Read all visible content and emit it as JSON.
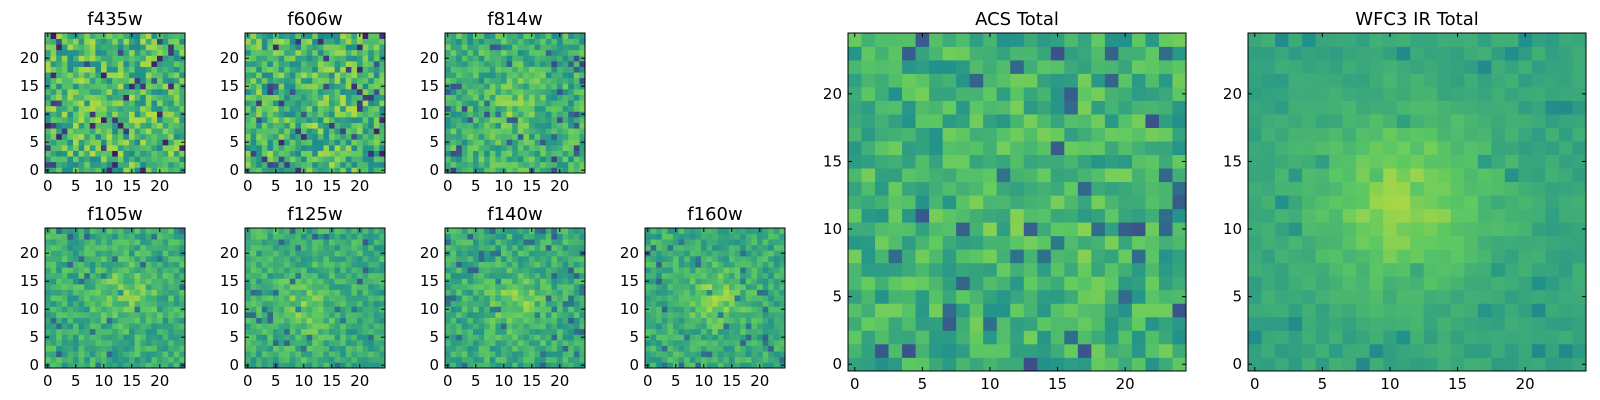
{
  "figure": {
    "colormap": [
      "#440154",
      "#3b528b",
      "#21918c",
      "#5ec962",
      "#fde725"
    ],
    "background": "#ffffff"
  },
  "chart_data": [
    {
      "id": "f435w",
      "type": "heatmap",
      "title": "f435w",
      "size": 25,
      "seed": 11,
      "peak": {
        "x": 13,
        "y": 12,
        "strength": 0.05,
        "sigma": 4
      },
      "noise": 1.0,
      "xticks": [
        0,
        5,
        10,
        15,
        20
      ],
      "yticks": [
        0,
        5,
        10,
        15,
        20
      ]
    },
    {
      "id": "f606w",
      "type": "heatmap",
      "title": "f606w",
      "size": 25,
      "seed": 23,
      "peak": {
        "x": 13,
        "y": 12,
        "strength": 0.08,
        "sigma": 4
      },
      "noise": 1.0,
      "xticks": [
        0,
        5,
        10,
        15,
        20
      ],
      "yticks": [
        0,
        5,
        10,
        15,
        20
      ]
    },
    {
      "id": "f814w",
      "type": "heatmap",
      "title": "f814w",
      "size": 25,
      "seed": 37,
      "peak": {
        "x": 12,
        "y": 12,
        "strength": 0.22,
        "sigma": 3
      },
      "noise": 0.9,
      "xticks": [
        0,
        5,
        10,
        15,
        20
      ],
      "yticks": [
        0,
        5,
        10,
        15,
        20
      ]
    },
    {
      "id": "f105w",
      "type": "heatmap",
      "title": "f105w",
      "size": 25,
      "seed": 41,
      "peak": {
        "x": 14,
        "y": 13,
        "strength": 0.3,
        "sigma": 3.5
      },
      "noise": 0.8,
      "xticks": [
        0,
        5,
        10,
        15,
        20
      ],
      "yticks": [
        0,
        5,
        10,
        15,
        20
      ]
    },
    {
      "id": "f125w",
      "type": "heatmap",
      "title": "f125w",
      "size": 25,
      "seed": 53,
      "peak": {
        "x": 10,
        "y": 10,
        "strength": 0.3,
        "sigma": 3.5
      },
      "noise": 0.8,
      "xticks": [
        0,
        5,
        10,
        15,
        20
      ],
      "yticks": [
        0,
        5,
        10,
        15,
        20
      ]
    },
    {
      "id": "f140w",
      "type": "heatmap",
      "title": "f140w",
      "size": 25,
      "seed": 67,
      "peak": {
        "x": 12,
        "y": 11,
        "strength": 0.32,
        "sigma": 3.5
      },
      "noise": 0.8,
      "xticks": [
        0,
        5,
        10,
        15,
        20
      ],
      "yticks": [
        0,
        5,
        10,
        15,
        20
      ]
    },
    {
      "id": "f160w",
      "type": "heatmap",
      "title": "f160w",
      "size": 25,
      "seed": 79,
      "peak": {
        "x": 12,
        "y": 12,
        "strength": 0.35,
        "sigma": 3.5
      },
      "noise": 0.8,
      "xticks": [
        0,
        5,
        10,
        15,
        20
      ],
      "yticks": [
        0,
        5,
        10,
        15,
        20
      ]
    },
    {
      "id": "acs-total",
      "type": "heatmap",
      "title": "ACS Total",
      "size": 25,
      "seed": 97,
      "peak": {
        "x": 13,
        "y": 12,
        "strength": 0.15,
        "sigma": 4
      },
      "noise": 0.75,
      "xticks": [
        0,
        5,
        10,
        15,
        20
      ],
      "yticks": [
        0,
        5,
        10,
        15,
        20
      ]
    },
    {
      "id": "wfc3-ir-total",
      "type": "heatmap",
      "title": "WFC3 IR Total",
      "size": 25,
      "seed": 113,
      "peak": {
        "x": 11,
        "y": 12,
        "strength": 0.55,
        "sigma": 4.5
      },
      "noise": 0.45,
      "xticks": [
        0,
        5,
        10,
        15,
        20
      ],
      "yticks": [
        0,
        5,
        10,
        15,
        20
      ]
    }
  ]
}
